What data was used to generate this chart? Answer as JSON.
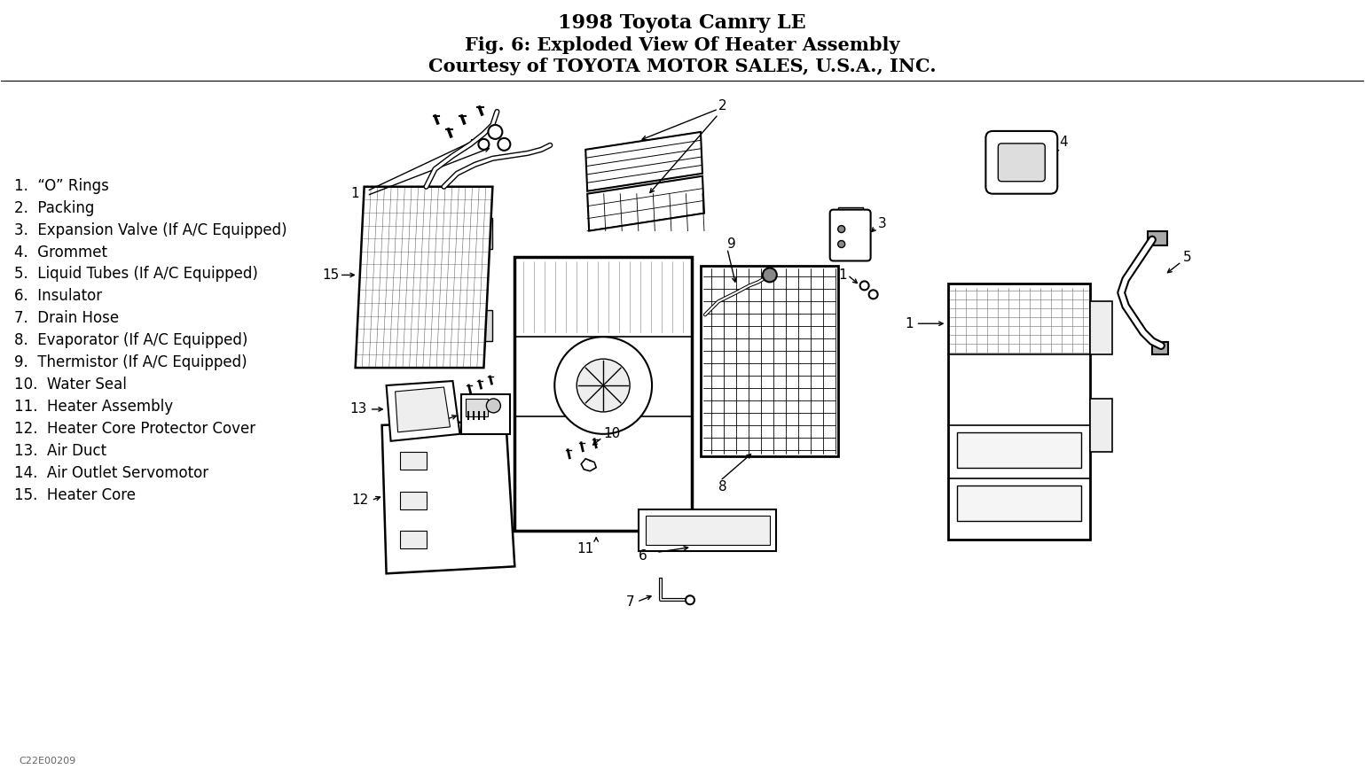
{
  "title_line1": "1998 Toyota Camry LE",
  "title_line2": "Fig. 6: Exploded View Of Heater Assembly",
  "title_line3": "Courtesy of TOYOTA MOTOR SALES, U.S.A., INC.",
  "bg_color": "#ffffff",
  "text_color": "#000000",
  "title_fontsize": 16,
  "subtitle_fontsize": 15,
  "label_fontsize": 12,
  "diagram_label_fontsize": 11,
  "parts_list": [
    "1.  “O” Rings",
    "2.  Packing",
    "3.  Expansion Valve (If A/C Equipped)",
    "4.  Grommet",
    "5.  Liquid Tubes (If A/C Equipped)",
    "6.  Insulator",
    "7.  Drain Hose",
    "8.  Evaporator (If A/C Equipped)",
    "9.  Thermistor (If A/C Equipped)",
    "10.  Water Seal",
    "11.  Heater Assembly",
    "12.  Heater Core Protector Cover",
    "13.  Air Duct",
    "14.  Air Outlet Servomotor",
    "15.  Heater Core"
  ],
  "watermark": "C22E00209",
  "fig_width": 15.39,
  "fig_height": 8.77,
  "dpi": 100
}
